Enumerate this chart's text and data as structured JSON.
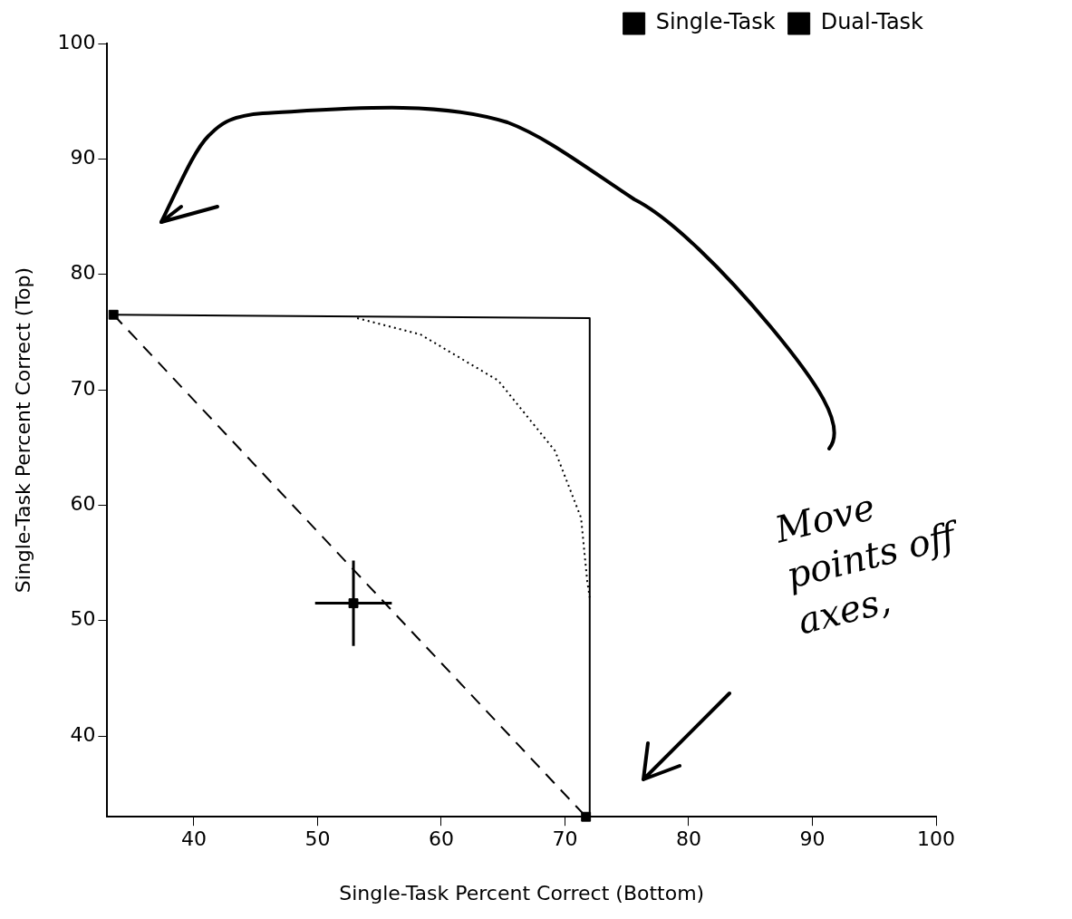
{
  "chart_data": {
    "type": "scatter",
    "xlabel": "Single-Task Percent Correct (Bottom)",
    "ylabel": "Single-Task Percent Correct (Top)",
    "xlim": [
      33,
      100
    ],
    "ylim": [
      33,
      100
    ],
    "xticks": [
      40,
      50,
      60,
      70,
      80,
      90,
      100
    ],
    "yticks": [
      40,
      50,
      60,
      70,
      80,
      90,
      100
    ],
    "grid": false,
    "legend": "top right",
    "marker": "square",
    "annotations": [
      "Move points off axes,"
    ],
    "series": [
      {
        "name": "Single-Task",
        "color": "#000000",
        "x": [
          33.5,
          71.7
        ],
        "values": [
          76.5,
          33
        ]
      },
      {
        "name": "Dual-Task",
        "color": "#000000",
        "x": [
          52.9
        ],
        "values": [
          51.5
        ],
        "errors": [
          3.7
        ],
        "xerrors": [
          3.1
        ]
      },
      {
        "type": "line",
        "color": "#000000",
        "marker": "none",
        "line_style": "solid",
        "x": [
          33.5,
          72,
          72
        ],
        "values": [
          76.5,
          76.2,
          33
        ]
      },
      {
        "type": "line",
        "color": "#000000",
        "marker": "none",
        "line_style": "dashed",
        "x": [
          33.5,
          71.7
        ],
        "values": [
          76.5,
          33
        ]
      },
      {
        "type": "line",
        "color": "#000000",
        "marker": "none",
        "line_style": "dotted",
        "x": [
          53.2,
          58.3,
          64.6,
          69.2,
          71.3,
          71.8,
          72
        ],
        "values": [
          76.2,
          74.8,
          70.8,
          64.7,
          58.9,
          53.4,
          52
        ]
      }
    ]
  }
}
